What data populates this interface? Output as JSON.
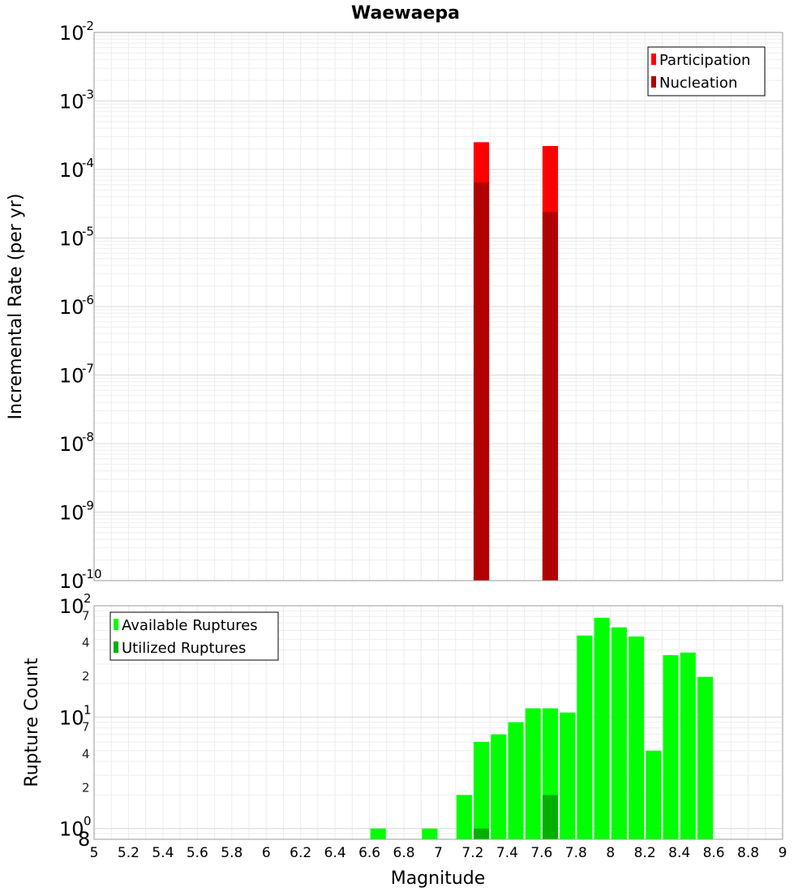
{
  "chart_data": [
    {
      "type": "bar",
      "title": "Waewaepa",
      "ylabel": "Incremental Rate (per yr)",
      "yscale": "log",
      "ylim": [
        1e-10,
        0.01
      ],
      "xlim": [
        5,
        9
      ],
      "bar_width": 0.09,
      "grid": true,
      "legend_position": "top-right",
      "y_ticks": [
        "10",
        "10",
        "10",
        "10",
        "10",
        "10",
        "10",
        "10",
        "10"
      ],
      "y_tick_exponents": [
        "-10",
        "-9",
        "-8",
        "-7",
        "-6",
        "-5",
        "-4",
        "-3",
        "-2"
      ],
      "series": [
        {
          "name": "Participation",
          "color": "#ff0000",
          "x": [
            7.25,
            7.65
          ],
          "values": [
            0.00025,
            0.00022
          ]
        },
        {
          "name": "Nucleation",
          "color": "#b00000",
          "x": [
            7.25,
            7.65
          ],
          "values": [
            6.5e-05,
            2.4e-05
          ]
        }
      ]
    },
    {
      "type": "bar",
      "xlabel": "Magnitude",
      "ylabel": "Rupture Count",
      "yscale": "log",
      "ylim": [
        0.8,
        100
      ],
      "xlim": [
        5,
        9
      ],
      "bar_width": 0.09,
      "grid": true,
      "legend_position": "top-left",
      "x_ticks": [
        "5",
        "5.2",
        "5.4",
        "5.6",
        "5.8",
        "6",
        "6.2",
        "6.4",
        "6.6",
        "6.8",
        "7",
        "7.2",
        "7.4",
        "7.6",
        "7.8",
        "8",
        "8.2",
        "8.4",
        "8.6",
        "8.8",
        "9"
      ],
      "y_ticks": [
        "10",
        "10",
        "10"
      ],
      "y_tick_exponents": [
        "0",
        "1",
        "2"
      ],
      "y_minor_ticks": [
        "8",
        "2",
        "4",
        "7",
        "2",
        "4",
        "7"
      ],
      "series": [
        {
          "name": "Available Ruptures",
          "color": "#00ff00",
          "x": [
            6.65,
            6.95,
            7.15,
            7.25,
            7.35,
            7.45,
            7.55,
            7.65,
            7.75,
            7.85,
            7.95,
            8.05,
            8.15,
            8.25,
            8.35,
            8.45,
            8.55
          ],
          "values": [
            1,
            1,
            2,
            6,
            7,
            9,
            12,
            12,
            11,
            54,
            78,
            64,
            53,
            5,
            36,
            38,
            23
          ]
        },
        {
          "name": "Utilized Ruptures",
          "color": "#00b000",
          "x": [
            7.25,
            7.65
          ],
          "values": [
            1,
            2
          ]
        }
      ]
    }
  ]
}
